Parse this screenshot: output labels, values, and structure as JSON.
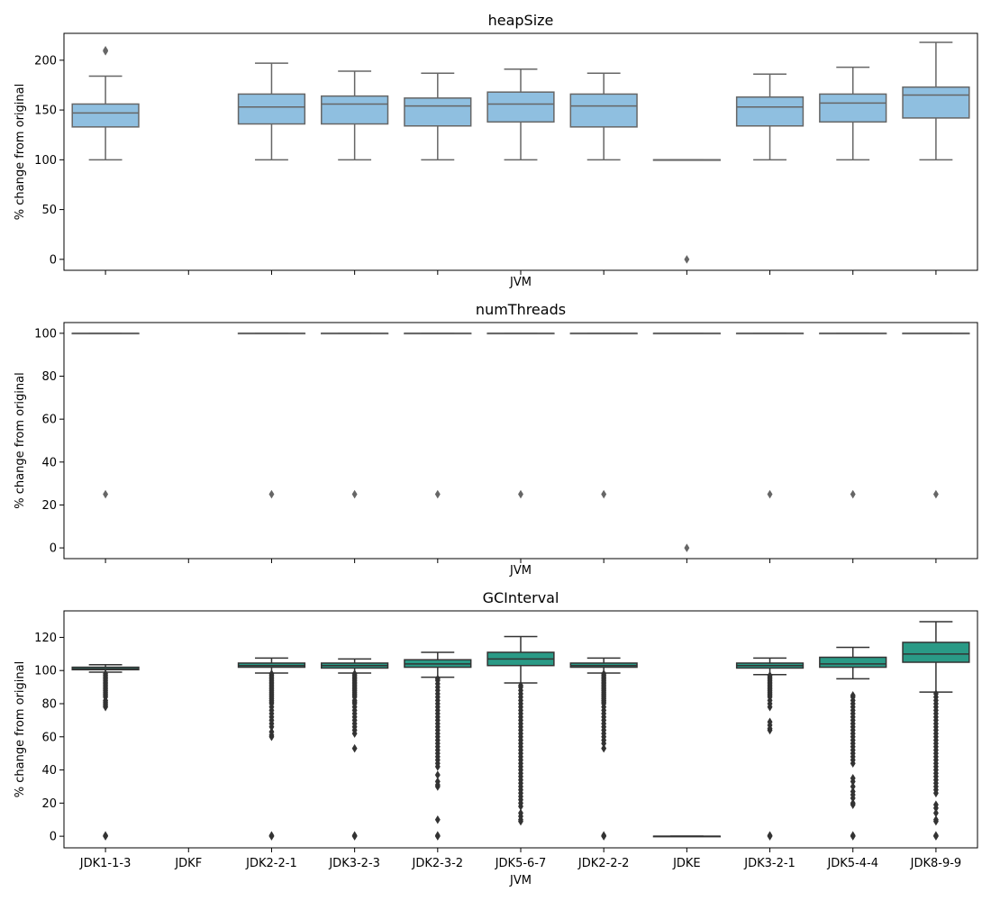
{
  "chart_data": [
    {
      "type": "box",
      "title": "heapSize",
      "xlabel": "JVM",
      "ylabel": "% change from original",
      "ylim": [
        -11,
        227
      ],
      "yticks": [
        0,
        50,
        100,
        150,
        200
      ],
      "color": "#8fbfe0",
      "categories": [
        "JDK1-1-3",
        "JDKF",
        "JDK2-2-1",
        "JDK3-2-3",
        "JDK2-3-2",
        "JDK5-6-7",
        "JDK2-2-2",
        "JDKE",
        "JDK3-2-1",
        "JDK5-4-4",
        "JDK8-9-9"
      ],
      "boxes": [
        {
          "whislo": 100,
          "q1": 133,
          "med": 147,
          "q3": 156,
          "whishi": 184,
          "fliers": [
            209,
            210
          ]
        },
        null,
        {
          "whislo": 100,
          "q1": 136,
          "med": 153,
          "q3": 166,
          "whishi": 197,
          "fliers": []
        },
        {
          "whislo": 100,
          "q1": 136,
          "med": 156,
          "q3": 164,
          "whishi": 189,
          "fliers": []
        },
        {
          "whislo": 100,
          "q1": 134,
          "med": 154,
          "q3": 162,
          "whishi": 187,
          "fliers": []
        },
        {
          "whislo": 100,
          "q1": 138,
          "med": 156,
          "q3": 168,
          "whishi": 191,
          "fliers": []
        },
        {
          "whislo": 100,
          "q1": 133,
          "med": 154,
          "q3": 166,
          "whishi": 187,
          "fliers": []
        },
        {
          "whislo": 100,
          "q1": 100,
          "med": 100,
          "q3": 100,
          "whishi": 100,
          "fliers": [
            0
          ]
        },
        {
          "whislo": 100,
          "q1": 134,
          "med": 153,
          "q3": 163,
          "whishi": 186,
          "fliers": []
        },
        {
          "whislo": 100,
          "q1": 138,
          "med": 157,
          "q3": 166,
          "whishi": 193,
          "fliers": []
        },
        {
          "whislo": 100,
          "q1": 142,
          "med": 165,
          "q3": 173,
          "whishi": 218,
          "fliers": []
        }
      ]
    },
    {
      "type": "box",
      "title": "numThreads",
      "xlabel": "JVM",
      "ylabel": "% change from original",
      "ylim": [
        -5,
        105
      ],
      "yticks": [
        0,
        20,
        40,
        60,
        80,
        100
      ],
      "color": "#8fbfe0",
      "categories": [
        "JDK1-1-3",
        "JDKF",
        "JDK2-2-1",
        "JDK3-2-3",
        "JDK2-3-2",
        "JDK5-6-7",
        "JDK2-2-2",
        "JDKE",
        "JDK3-2-1",
        "JDK5-4-4",
        "JDK8-9-9"
      ],
      "boxes": [
        {
          "whislo": 100,
          "q1": 100,
          "med": 100,
          "q3": 100,
          "whishi": 100,
          "fliers": [
            25
          ]
        },
        null,
        {
          "whislo": 100,
          "q1": 100,
          "med": 100,
          "q3": 100,
          "whishi": 100,
          "fliers": [
            25
          ]
        },
        {
          "whislo": 100,
          "q1": 100,
          "med": 100,
          "q3": 100,
          "whishi": 100,
          "fliers": [
            25
          ]
        },
        {
          "whislo": 100,
          "q1": 100,
          "med": 100,
          "q3": 100,
          "whishi": 100,
          "fliers": [
            25
          ]
        },
        {
          "whislo": 100,
          "q1": 100,
          "med": 100,
          "q3": 100,
          "whishi": 100,
          "fliers": [
            25
          ]
        },
        {
          "whislo": 100,
          "q1": 100,
          "med": 100,
          "q3": 100,
          "whishi": 100,
          "fliers": [
            25
          ]
        },
        {
          "whislo": 100,
          "q1": 100,
          "med": 100,
          "q3": 100,
          "whishi": 100,
          "fliers": [
            0
          ]
        },
        {
          "whislo": 100,
          "q1": 100,
          "med": 100,
          "q3": 100,
          "whishi": 100,
          "fliers": [
            25
          ]
        },
        {
          "whislo": 100,
          "q1": 100,
          "med": 100,
          "q3": 100,
          "whishi": 100,
          "fliers": [
            25
          ]
        },
        {
          "whislo": 100,
          "q1": 100,
          "med": 100,
          "q3": 100,
          "whishi": 100,
          "fliers": [
            25
          ]
        }
      ]
    },
    {
      "type": "box",
      "title": "GCInterval",
      "xlabel": "JVM",
      "ylabel": "% change from original",
      "ylim": [
        -7,
        136
      ],
      "yticks": [
        0,
        20,
        40,
        60,
        80,
        100,
        120
      ],
      "color": "#2a9a86",
      "categories": [
        "JDK1-1-3",
        "JDKF",
        "JDK2-2-1",
        "JDK3-2-3",
        "JDK2-3-2",
        "JDK5-6-7",
        "JDK2-2-2",
        "JDKE",
        "JDK3-2-1",
        "JDK5-4-4",
        "JDK8-9-9"
      ],
      "tick_labels": [
        "JDK1-1-3",
        "JDKF",
        "JDK2-2-1",
        "JDK3-2-3",
        "JDK2-3-2",
        "JDK5-6-7",
        "JDK2-2-2",
        "JDKE",
        "JDK3-2-1",
        "JDK5-4-4",
        "JDK8-9-9"
      ],
      "boxes": [
        {
          "whislo": 99,
          "q1": 100.5,
          "med": 101,
          "q3": 102,
          "whishi": 103.5,
          "fliers": [
            0,
            0.5,
            78,
            79,
            80,
            81,
            82,
            84,
            85,
            86,
            87,
            88,
            89,
            90,
            91,
            92,
            93,
            94,
            95,
            96,
            97,
            98
          ]
        },
        null,
        {
          "whislo": 98.5,
          "q1": 102,
          "med": 103,
          "q3": 104.5,
          "whishi": 107.5,
          "fliers": [
            0,
            0.5,
            60,
            61,
            63,
            66,
            68,
            70,
            72,
            74,
            76,
            78,
            80,
            81,
            82,
            83,
            84,
            85,
            86,
            87,
            88,
            89,
            90,
            91,
            92,
            93,
            94,
            95,
            96,
            97,
            98
          ]
        },
        {
          "whislo": 98.5,
          "q1": 101.5,
          "med": 103,
          "q3": 104.5,
          "whishi": 107,
          "fliers": [
            0,
            0.5,
            53,
            62,
            64,
            66,
            68,
            70,
            72,
            74,
            76,
            78,
            80,
            81,
            82,
            84,
            85,
            86,
            87,
            88,
            89,
            90,
            91,
            92,
            93,
            94,
            95,
            96,
            97,
            98
          ]
        },
        {
          "whislo": 96,
          "q1": 102,
          "med": 104,
          "q3": 106.5,
          "whishi": 111,
          "fliers": [
            0,
            0.5,
            10,
            30,
            31,
            33,
            37,
            42,
            44,
            46,
            48,
            50,
            52,
            54,
            56,
            58,
            60,
            62,
            64,
            66,
            68,
            70,
            72,
            74,
            76,
            78,
            80,
            82,
            84,
            86,
            88,
            90,
            92,
            94,
            95
          ]
        },
        {
          "whislo": 92.5,
          "q1": 103,
          "med": 107,
          "q3": 111,
          "whishi": 120.5,
          "fliers": [
            9,
            10,
            12,
            14,
            18,
            20,
            22,
            24,
            26,
            28,
            30,
            32,
            34,
            36,
            38,
            40,
            42,
            44,
            46,
            48,
            50,
            52,
            54,
            56,
            58,
            60,
            62,
            64,
            66,
            68,
            70,
            72,
            74,
            76,
            78,
            80,
            82,
            84,
            86,
            88,
            90,
            91
          ]
        },
        {
          "whislo": 98.5,
          "q1": 102,
          "med": 103,
          "q3": 104.5,
          "whishi": 107.5,
          "fliers": [
            0,
            0.5,
            53,
            56,
            58,
            60,
            62,
            64,
            66,
            68,
            70,
            72,
            74,
            76,
            78,
            80,
            81,
            82,
            83,
            84,
            85,
            86,
            87,
            88,
            89,
            90,
            91,
            92,
            93,
            94,
            95,
            96,
            97,
            98
          ]
        },
        {
          "whislo": 0,
          "q1": 0,
          "med": 0,
          "q3": 0,
          "whishi": 0,
          "fliers": []
        },
        {
          "whislo": 97.5,
          "q1": 101.5,
          "med": 103,
          "q3": 104.5,
          "whishi": 107.5,
          "fliers": [
            0,
            0.5,
            64,
            65,
            67,
            69,
            78,
            80,
            82,
            84,
            85,
            86,
            87,
            88,
            89,
            90,
            91,
            92,
            93,
            94,
            95,
            96,
            97
          ]
        },
        {
          "whislo": 95,
          "q1": 102,
          "med": 104,
          "q3": 108,
          "whishi": 114,
          "fliers": [
            0,
            0.5,
            19,
            20,
            23,
            25,
            27,
            30,
            33,
            35,
            44,
            46,
            48,
            50,
            52,
            54,
            56,
            58,
            60,
            62,
            64,
            66,
            68,
            70,
            72,
            74,
            76,
            78,
            80,
            82,
            84,
            85
          ]
        },
        {
          "whislo": 87,
          "q1": 105,
          "med": 110,
          "q3": 117,
          "whishi": 129.5,
          "fliers": [
            0,
            0.5,
            9,
            10,
            14,
            17,
            19,
            26,
            28,
            30,
            32,
            34,
            36,
            38,
            40,
            42,
            44,
            46,
            48,
            50,
            52,
            54,
            56,
            58,
            60,
            62,
            64,
            66,
            68,
            70,
            72,
            74,
            76,
            78,
            80,
            82,
            84,
            86
          ]
        }
      ]
    }
  ]
}
